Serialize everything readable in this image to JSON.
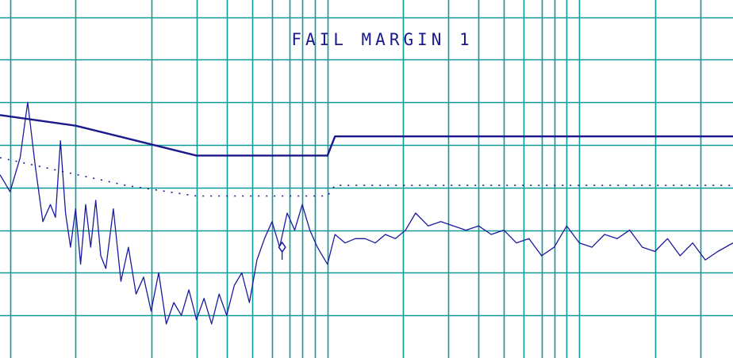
{
  "chart_data": {
    "type": "line",
    "title": "FAIL MARGIN 1",
    "xlabel": "",
    "ylabel": "",
    "x_scale": "log",
    "x_grid_lines": [
      -0.26,
      0.0,
      0.3,
      0.48,
      0.6,
      0.7,
      0.78,
      0.85,
      0.9,
      0.95,
      1.0,
      1.3,
      1.48,
      1.6,
      1.7,
      1.78,
      1.85,
      1.9,
      1.95,
      2.0,
      2.3,
      2.48
    ],
    "xlim": [
      -0.3,
      2.61
    ],
    "ylim": [
      0,
      8.4
    ],
    "y_grid_lines": [
      1,
      2,
      3,
      4,
      5,
      6,
      7,
      8
    ],
    "grid": true,
    "colors": {
      "grid": "#0a9b97",
      "trace": "#1a1aa0",
      "limit": "#1a1a8c",
      "title": "#1a1a8c"
    },
    "series": [
      {
        "style": "solid-limit",
        "x": [
          -0.3,
          0.0,
          0.48,
          1.0,
          1.03,
          2.61
        ],
        "y": [
          5.7,
          5.45,
          4.75,
          4.75,
          5.2,
          5.2
        ]
      },
      {
        "style": "dotted-margin",
        "x": [
          -0.3,
          0.2,
          0.48,
          1.0,
          1.03,
          2.61
        ],
        "y": [
          4.7,
          4.05,
          3.8,
          3.8,
          4.05,
          4.05
        ]
      },
      {
        "style": "measured",
        "x": [
          -0.3,
          -0.26,
          -0.22,
          -0.19,
          -0.16,
          -0.13,
          -0.1,
          -0.08,
          -0.06,
          -0.04,
          -0.02,
          0.0,
          0.02,
          0.04,
          0.06,
          0.08,
          0.1,
          0.12,
          0.15,
          0.18,
          0.21,
          0.24,
          0.27,
          0.3,
          0.33,
          0.36,
          0.39,
          0.42,
          0.45,
          0.48,
          0.51,
          0.54,
          0.57,
          0.6,
          0.63,
          0.66,
          0.69,
          0.72,
          0.75,
          0.78,
          0.81,
          0.84,
          0.87,
          0.9,
          0.93,
          0.96,
          0.98,
          1.0,
          1.03,
          1.07,
          1.11,
          1.15,
          1.19,
          1.23,
          1.27,
          1.31,
          1.35,
          1.4,
          1.45,
          1.5,
          1.55,
          1.6,
          1.65,
          1.7,
          1.75,
          1.8,
          1.85,
          1.9,
          1.95,
          2.0,
          2.05,
          2.1,
          2.15,
          2.2,
          2.25,
          2.3,
          2.35,
          2.4,
          2.45,
          2.5,
          2.55,
          2.61
        ],
        "y": [
          4.3,
          3.9,
          4.7,
          6.0,
          4.5,
          3.2,
          3.6,
          3.3,
          5.1,
          3.4,
          2.6,
          3.5,
          2.2,
          3.6,
          2.6,
          3.7,
          2.4,
          2.1,
          3.5,
          1.8,
          2.6,
          1.5,
          1.9,
          1.1,
          2.0,
          0.8,
          1.3,
          1.0,
          1.6,
          0.9,
          1.4,
          0.8,
          1.5,
          1.0,
          1.7,
          2.0,
          1.3,
          2.3,
          2.8,
          3.2,
          2.6,
          3.4,
          3.0,
          3.6,
          3.0,
          2.6,
          2.4,
          2.2,
          2.9,
          2.7,
          2.8,
          2.8,
          2.7,
          2.9,
          2.8,
          3.0,
          3.4,
          3.1,
          3.2,
          3.1,
          3.0,
          3.1,
          2.9,
          3.0,
          2.7,
          2.8,
          2.4,
          2.6,
          3.1,
          2.7,
          2.6,
          2.9,
          2.8,
          3.0,
          2.6,
          2.5,
          2.8,
          2.4,
          2.7,
          2.3,
          2.5,
          2.7
        ]
      }
    ],
    "marker": {
      "x": 0.82,
      "y": 2.6,
      "symbol": "diamond"
    }
  }
}
